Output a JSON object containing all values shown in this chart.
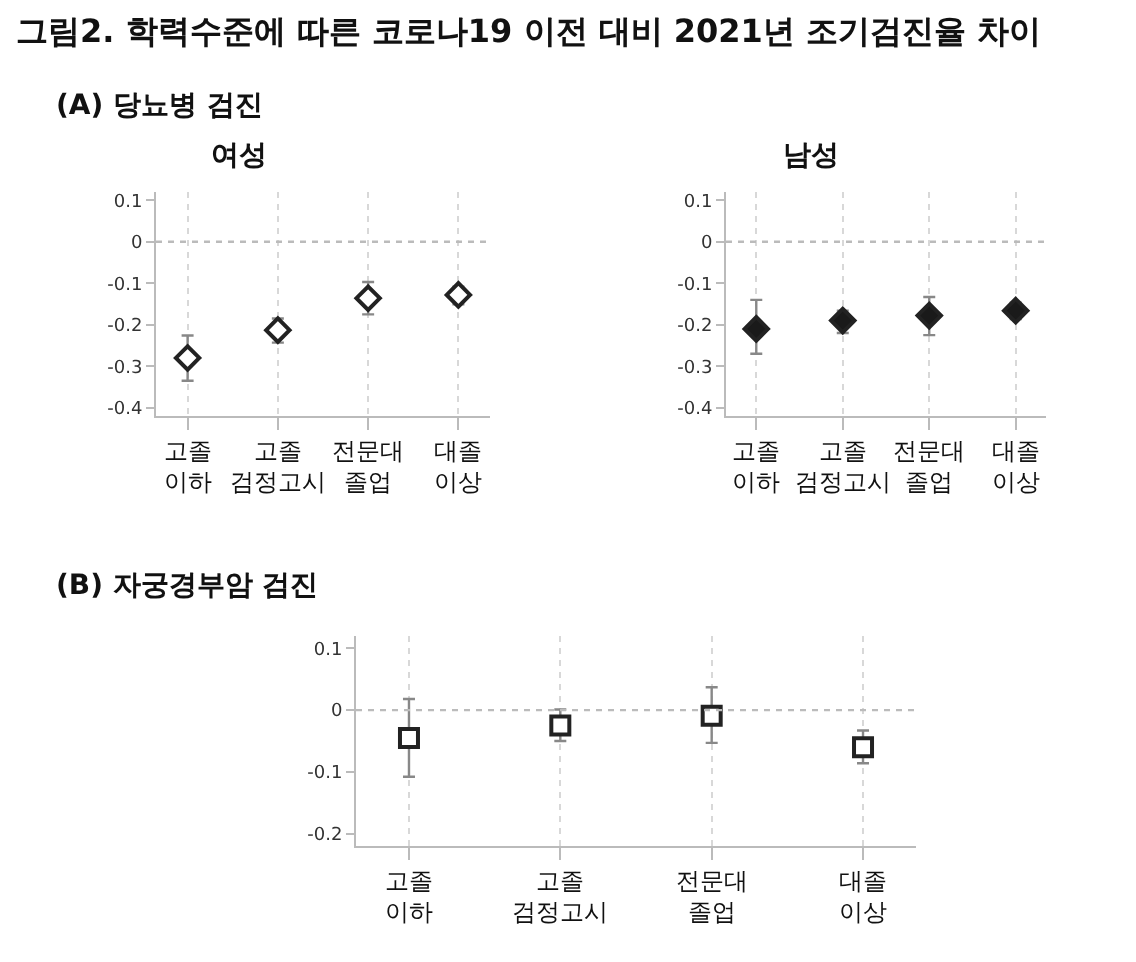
{
  "chart_data": [
    {
      "type": "scatter",
      "title": "여성",
      "annotations": [
        "그림2. 학력수준에 따른 코로나19 이전 대비 2021년 조기검진율 차이",
        "(A) 당뇨병 검진"
      ],
      "categories": [
        "고졸\n이하",
        "고졸\n검정고시",
        "전문대\n졸업",
        "대졸\n이상"
      ],
      "series": [
        {
          "color": "#ffffff",
          "values": [
            -0.28,
            -0.213,
            -0.136,
            -0.128
          ],
          "errors": [
            [
              -0.335,
              -0.226
            ],
            [
              -0.243,
              -0.185
            ],
            [
              -0.175,
              -0.097
            ],
            [
              -0.151,
              -0.108
            ]
          ]
        }
      ],
      "ylim": [
        -0.42,
        0.12
      ],
      "yticks": [
        0.1,
        0,
        -0.1,
        -0.2,
        -0.3,
        -0.4
      ],
      "grid": "x",
      "marker": "diamond",
      "ref_lines": [
        {
          "axis": "y",
          "value": 0,
          "line_style": "dotted"
        }
      ]
    },
    {
      "type": "scatter",
      "title": "남성",
      "categories": [
        "고졸\n이하",
        "고졸\n검정고시",
        "전문대\n졸업",
        "대졸\n이상"
      ],
      "series": [
        {
          "color": "#1a1a1a",
          "values": [
            -0.21,
            -0.19,
            -0.178,
            -0.166
          ],
          "errors": [
            [
              -0.27,
              -0.14
            ],
            [
              -0.22,
              -0.166
            ],
            [
              -0.225,
              -0.133
            ],
            [
              -0.186,
              -0.147
            ]
          ]
        }
      ],
      "ylim": [
        -0.42,
        0.12
      ],
      "yticks": [
        0.1,
        0,
        -0.1,
        -0.2,
        -0.3,
        -0.4
      ],
      "grid": "x",
      "marker": "diamond",
      "ref_lines": [
        {
          "axis": "y",
          "value": 0,
          "line_style": "dotted"
        }
      ]
    },
    {
      "type": "scatter",
      "annotations": [
        "(B) 자궁경부암 검진"
      ],
      "categories": [
        "고졸\n이하",
        "고졸\n검정고시",
        "전문대\n졸업",
        "대졸\n이상"
      ],
      "series": [
        {
          "color": "#ffffff",
          "values": [
            -0.045,
            -0.025,
            -0.009,
            -0.06
          ],
          "errors": [
            [
              -0.108,
              0.018
            ],
            [
              -0.05,
              0.001
            ],
            [
              -0.053,
              0.037
            ],
            [
              -0.086,
              -0.033
            ]
          ]
        }
      ],
      "ylim": [
        -0.22,
        0.12
      ],
      "yticks": [
        0.1,
        0,
        -0.1,
        -0.2
      ],
      "grid": "x",
      "marker": "square",
      "ref_lines": [
        {
          "axis": "y",
          "value": 0,
          "line_style": "dotted"
        }
      ]
    }
  ]
}
